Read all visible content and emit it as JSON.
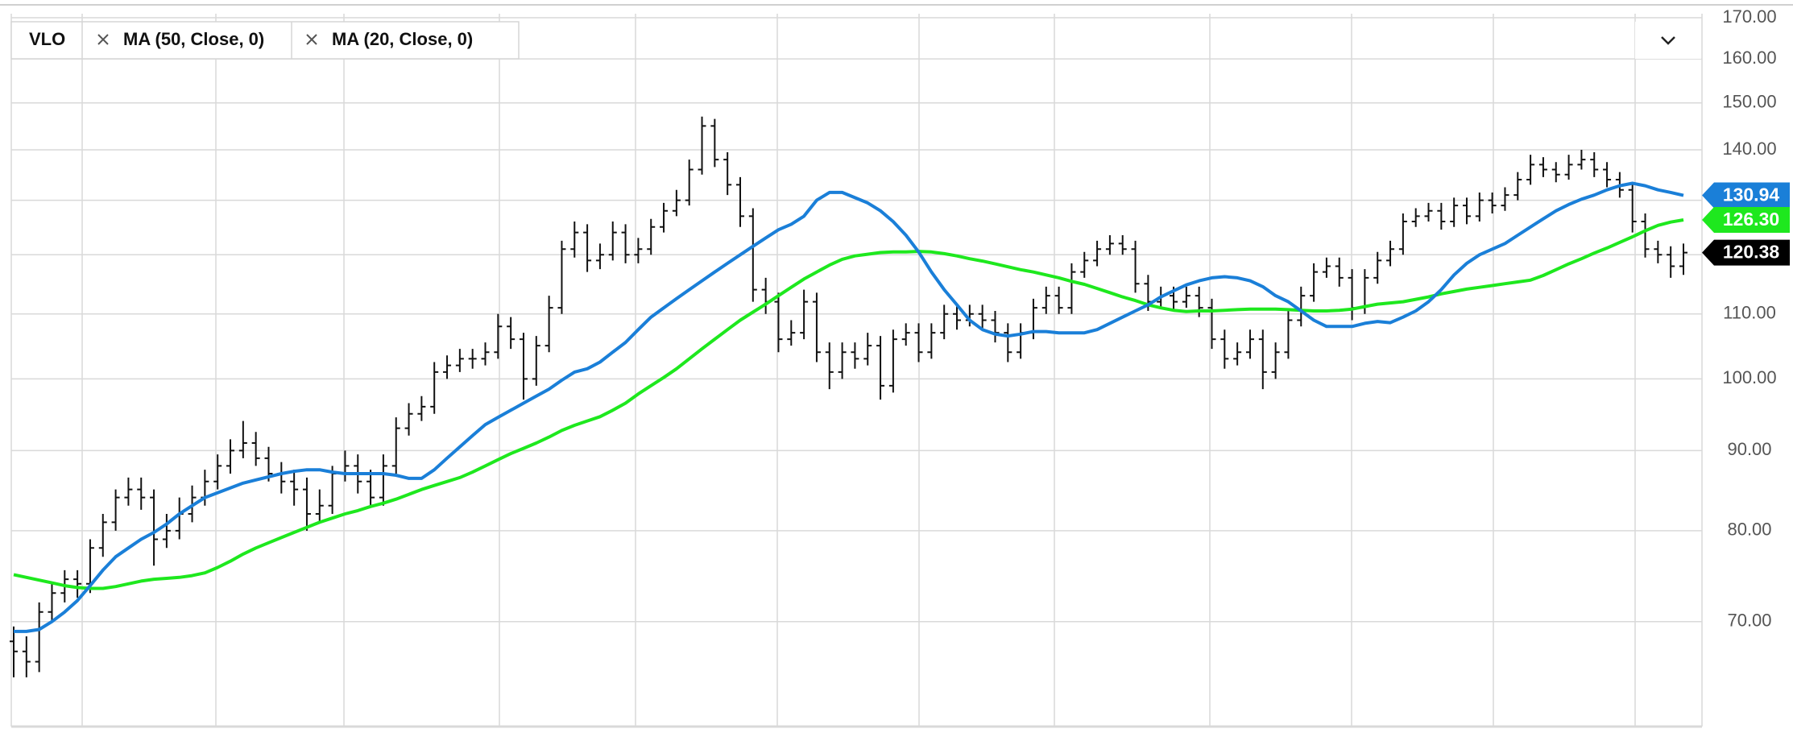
{
  "chart_data": {
    "type": "ohlc",
    "symbol": "VLO",
    "color": "#111111",
    "log_scale": true,
    "grid": true,
    "ylim": [
      60,
      171
    ],
    "yticks": [
      {
        "value": 70,
        "label": "70.00"
      },
      {
        "value": 80,
        "label": "80.00"
      },
      {
        "value": 90,
        "label": "90.00"
      },
      {
        "value": 100,
        "label": "100.00"
      },
      {
        "value": 110,
        "label": "110.00"
      },
      {
        "value": 120,
        "label": "120.00"
      },
      {
        "value": 130,
        "label": "130.00"
      },
      {
        "value": 140,
        "label": "140.00"
      },
      {
        "value": 150,
        "label": "150.00"
      },
      {
        "value": 160,
        "label": "160.00"
      },
      {
        "value": 170,
        "label": "170.00"
      }
    ],
    "open": [
      68,
      67,
      66,
      71,
      73,
      74.5,
      74,
      78,
      81,
      84,
      85,
      84,
      79,
      80,
      82,
      84,
      86,
      88,
      90,
      91,
      89,
      87,
      86,
      85,
      82,
      83,
      87,
      88,
      86,
      84,
      88,
      93,
      95,
      96,
      101,
      102,
      103,
      103,
      104,
      108,
      106,
      100,
      105,
      111,
      121,
      124,
      119,
      120,
      124,
      120,
      121,
      125,
      128,
      130,
      136,
      145,
      138,
      133,
      127,
      114,
      112,
      106,
      107,
      112,
      104,
      101,
      104,
      103,
      105,
      99,
      106,
      107,
      104,
      107,
      110,
      109,
      110,
      109,
      107,
      104,
      107,
      111,
      113,
      111,
      117,
      119,
      121,
      122,
      121,
      115,
      112,
      113,
      112,
      113,
      111,
      106,
      103,
      104,
      106,
      101,
      104,
      109,
      113,
      117,
      118,
      116,
      111,
      116,
      119,
      121,
      126,
      127,
      128,
      126,
      129,
      127,
      130,
      129,
      131,
      134,
      137,
      136,
      135,
      137,
      138,
      136,
      134,
      132,
      126,
      121,
      120,
      118
    ],
    "high": [
      69.5,
      68.5,
      72,
      74,
      75.5,
      75.5,
      79,
      82,
      85,
      86.5,
      86.5,
      85,
      82,
      84,
      85.5,
      87.5,
      89.5,
      91.5,
      94,
      92.5,
      90.5,
      88.5,
      87.5,
      86.5,
      85,
      88,
      90,
      89.5,
      87.5,
      89.5,
      94.5,
      96.5,
      97.5,
      102.5,
      103.5,
      104.5,
      104.5,
      105.5,
      110,
      109.5,
      107,
      106.5,
      113,
      122.5,
      126,
      125.5,
      122,
      126,
      125.5,
      123,
      126.5,
      129.5,
      132,
      138,
      147,
      146.5,
      139.5,
      134.5,
      128.5,
      116,
      113.5,
      109,
      114,
      113.5,
      105.5,
      105.5,
      105.5,
      107,
      106.5,
      107.5,
      108.5,
      108.5,
      108.5,
      111.5,
      111.5,
      111.5,
      111.5,
      110.5,
      108.5,
      108.5,
      112.5,
      114.5,
      114.5,
      118.5,
      120.5,
      122.5,
      123.5,
      123.5,
      122.5,
      116.5,
      114.5,
      114.5,
      114.5,
      114.5,
      112.5,
      107.5,
      105.5,
      107.5,
      107.5,
      105.5,
      110.5,
      114.5,
      118.5,
      119.5,
      119.5,
      117.5,
      117.5,
      120.5,
      122.5,
      127.5,
      128.5,
      129.5,
      129.5,
      130.5,
      130.5,
      131.5,
      131.5,
      132.5,
      135.5,
      139,
      138.5,
      137.5,
      139,
      140,
      139.5,
      137.5,
      135.5,
      133.5,
      127.5,
      122.5,
      121.5,
      122
    ],
    "low": [
      64.5,
      64.5,
      65,
      70,
      72,
      72.5,
      73,
      77,
      80,
      83,
      82.5,
      76,
      78,
      79,
      81,
      83,
      85,
      87,
      89,
      88,
      86,
      84.5,
      83,
      80,
      81,
      82,
      86,
      84.5,
      83,
      83,
      87,
      92,
      94,
      95,
      100,
      101,
      101.5,
      102,
      103,
      104.5,
      97,
      99,
      104,
      110,
      119.5,
      117,
      117.5,
      119,
      118.5,
      118.5,
      120,
      124,
      127,
      129,
      135,
      136.5,
      131,
      125,
      112,
      110,
      104,
      105,
      106,
      102.5,
      98.5,
      100,
      101.5,
      102,
      97,
      98,
      105,
      102.5,
      103,
      106,
      107.5,
      108,
      107.5,
      105.5,
      102.5,
      103,
      106,
      110,
      110,
      110,
      116,
      118,
      120,
      120,
      113.5,
      110.5,
      111,
      110.5,
      111,
      109.5,
      104.5,
      101.5,
      102,
      103,
      98.5,
      100,
      103,
      108,
      112,
      116,
      114.5,
      109,
      110,
      115,
      118,
      120,
      125,
      126,
      124.5,
      125,
      125.5,
      126,
      127.5,
      128,
      130,
      133,
      134.5,
      133.5,
      134,
      136,
      134.5,
      132.5,
      130.5,
      124,
      119.5,
      118.5,
      116,
      116.5
    ],
    "close": [
      67,
      66,
      71,
      73,
      74.5,
      74,
      78,
      81,
      84,
      85,
      84,
      79,
      80,
      82,
      84,
      86,
      88,
      90,
      91,
      89,
      87,
      86,
      85,
      82,
      83,
      87,
      88,
      86,
      84,
      88,
      93,
      95,
      96,
      101,
      102,
      103,
      103,
      104,
      108,
      106,
      100,
      105,
      111,
      121,
      124,
      119,
      120,
      124,
      120,
      121,
      125,
      128,
      130,
      136,
      145,
      138,
      133,
      127,
      114,
      112,
      106,
      107,
      112,
      104,
      101,
      104,
      103,
      105,
      99,
      106,
      107,
      104,
      107,
      110,
      109,
      110,
      109,
      107,
      104,
      107,
      111,
      113,
      111,
      117,
      119,
      121,
      122,
      121,
      115,
      112,
      113,
      112,
      113,
      111,
      106,
      103,
      104,
      106,
      101,
      104,
      109,
      113,
      117,
      118,
      116,
      111,
      116,
      119,
      121,
      126,
      127,
      128,
      126,
      129,
      127,
      130,
      129,
      131,
      134,
      137,
      136,
      135,
      137,
      138,
      136,
      134,
      132,
      126,
      121,
      120,
      118,
      120.38
    ],
    "series": [
      {
        "name": "MA (50, Close, 0)",
        "color": "#1ee81e",
        "values": [
          75,
          74.7,
          74.4,
          74.1,
          73.8,
          73.6,
          73.5,
          73.5,
          73.7,
          74,
          74.3,
          74.5,
          74.6,
          74.7,
          74.9,
          75.2,
          75.8,
          76.5,
          77.3,
          78,
          78.6,
          79.2,
          79.8,
          80.4,
          81,
          81.5,
          82,
          82.4,
          82.9,
          83.3,
          83.8,
          84.4,
          85,
          85.5,
          86,
          86.5,
          87.2,
          88,
          88.8,
          89.6,
          90.3,
          91,
          91.8,
          92.7,
          93.4,
          94,
          94.6,
          95.5,
          96.5,
          97.8,
          99,
          100.2,
          101.5,
          103,
          104.5,
          106,
          107.5,
          109,
          110.3,
          111.6,
          113,
          114.4,
          115.8,
          117,
          118.2,
          119.2,
          119.8,
          120.1,
          120.4,
          120.5,
          120.5,
          120.6,
          120.5,
          120.2,
          119.8,
          119.3,
          118.9,
          118.4,
          117.9,
          117.4,
          117,
          116.5,
          116,
          115.4,
          114.9,
          114.2,
          113.5,
          112.8,
          112.2,
          111.5,
          111,
          110.6,
          110.4,
          110.5,
          110.5,
          110.6,
          110.7,
          110.8,
          110.8,
          110.8,
          110.7,
          110.6,
          110.5,
          110.5,
          110.6,
          110.8,
          111.2,
          111.6,
          111.8,
          112,
          112.4,
          112.8,
          113.3,
          113.7,
          114.1,
          114.4,
          114.7,
          115,
          115.3,
          115.6,
          116.4,
          117.4,
          118.4,
          119.3,
          120.3,
          121.2,
          122.2,
          123.2,
          124.3,
          125.3,
          125.9,
          126.3
        ]
      },
      {
        "name": "MA (20, Close, 0)",
        "color": "#1a7fd8",
        "values": [
          69,
          69,
          69.2,
          70,
          71,
          72.2,
          73.8,
          75.5,
          77,
          78,
          79,
          79.8,
          80.8,
          82,
          83,
          84,
          84.6,
          85.2,
          85.8,
          86.2,
          86.6,
          87,
          87.3,
          87.5,
          87.5,
          87.2,
          87,
          87,
          87,
          87,
          86.8,
          86.4,
          86.4,
          87.5,
          89,
          90.5,
          92,
          93.5,
          94.5,
          95.5,
          96.5,
          97.5,
          98.5,
          99.8,
          101,
          101.5,
          102.5,
          104,
          105.5,
          107.5,
          109.5,
          111,
          112.5,
          114,
          115.5,
          117,
          118.5,
          120,
          121.5,
          123,
          124.5,
          125.5,
          127,
          130,
          131.5,
          131.5,
          130.5,
          129.5,
          128,
          126,
          123.5,
          120.5,
          117,
          114,
          111.5,
          109,
          107.5,
          106.8,
          106.5,
          106.8,
          107.2,
          107.2,
          107,
          107,
          107,
          107.5,
          108.5,
          109.5,
          110.5,
          111.5,
          112.8,
          113.8,
          114.8,
          115.5,
          116,
          116.2,
          116,
          115.5,
          114.5,
          113,
          112,
          110.5,
          109,
          108,
          108,
          108,
          108.5,
          108.8,
          108.6,
          109.5,
          110.5,
          112,
          114,
          116.5,
          118.5,
          120,
          121,
          122,
          123.5,
          125,
          126.5,
          128,
          129.2,
          130.2,
          131,
          132,
          132.8,
          133.3,
          132.8,
          132,
          131.5,
          130.94
        ]
      }
    ],
    "badges": [
      {
        "value": 130.94,
        "label": "130.94",
        "color": "#1a7fd8"
      },
      {
        "value": 126.3,
        "label": "126.30",
        "color": "#1ee81e"
      },
      {
        "value": 120.38,
        "label": "120.38",
        "color": "#000000"
      }
    ]
  }
}
